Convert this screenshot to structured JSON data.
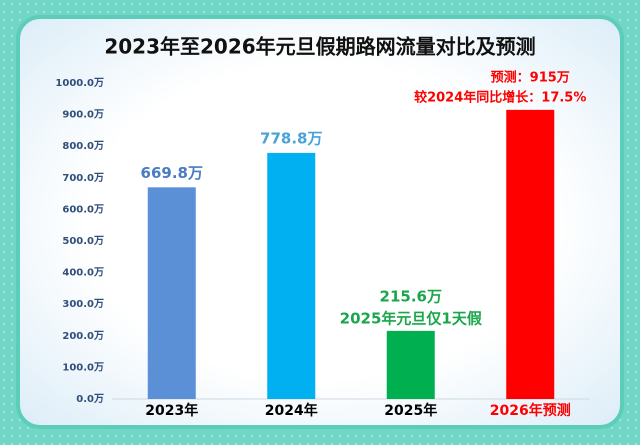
{
  "chart_data": {
    "type": "bar",
    "title": "2023年至2026年元旦假期路网流量对比及预测",
    "categories": [
      "2023年",
      "2024年",
      "2025年",
      "2026年预测"
    ],
    "values": [
      669.8,
      778.8,
      215.6,
      915
    ],
    "value_labels": [
      "669.8万",
      "778.8万",
      "215.6万",
      "预测：915万"
    ],
    "colors": [
      "#5b8fd6",
      "#00b0f0",
      "#00b050",
      "#ff0000"
    ],
    "label_colors": [
      "#4a7cc4",
      "#4aa3d8",
      "#1aa64a",
      "#ff0000"
    ],
    "category_label_colors": [
      "#000000",
      "#000000",
      "#000000",
      "#ff0000"
    ],
    "annotations": [
      "2025年元旦仅1天假",
      "较2024年同比增长：17.5%"
    ],
    "ylim": [
      0,
      1000
    ],
    "yticks": [
      {
        "value": 0,
        "label": "0.0万"
      },
      {
        "value": 100,
        "label": "100.0万"
      },
      {
        "value": 200,
        "label": "200.0万"
      },
      {
        "value": 300,
        "label": "300.0万"
      },
      {
        "value": 400,
        "label": "400.0万"
      },
      {
        "value": 500,
        "label": "500.0万"
      },
      {
        "value": 600,
        "label": "600.0万"
      },
      {
        "value": 700,
        "label": "700.0万"
      },
      {
        "value": 800,
        "label": "800.0万"
      },
      {
        "value": 900,
        "label": "900.0万"
      },
      {
        "value": 1000,
        "label": "1000.0万"
      }
    ],
    "grid": false
  }
}
